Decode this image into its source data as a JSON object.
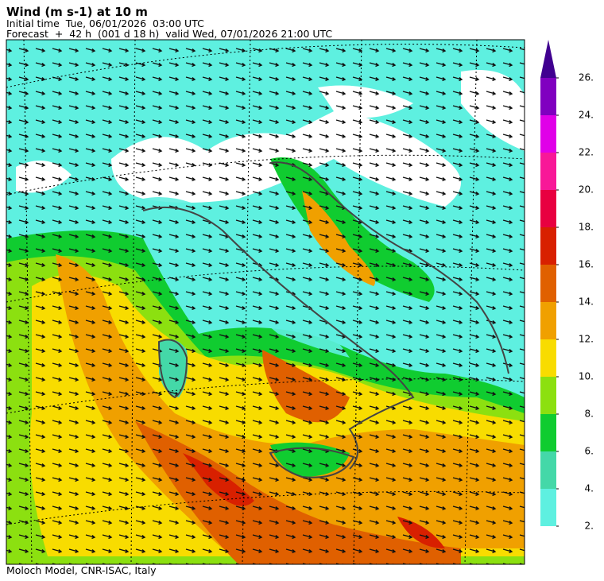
{
  "header": {
    "title": "Wind (m s-1) at 10 m",
    "initial": "Initial time  Tue, 06/01/2026  03:00 UTC",
    "forecast": "Forecast  +  42 h  (001 d 18 h)  valid Wed, 07/01/2026 21:00 UTC"
  },
  "colorbar": {
    "ticks": [
      {
        "value": 2,
        "label": "2."
      },
      {
        "value": 4,
        "label": "4."
      },
      {
        "value": 6,
        "label": "6."
      },
      {
        "value": 8,
        "label": "8."
      },
      {
        "value": 10,
        "label": "10."
      },
      {
        "value": 12,
        "label": "12."
      },
      {
        "value": 14,
        "label": "14."
      },
      {
        "value": 16,
        "label": "16."
      },
      {
        "value": 18,
        "label": "18."
      },
      {
        "value": 20,
        "label": "20."
      },
      {
        "value": 22,
        "label": "22."
      },
      {
        "value": 24,
        "label": "24."
      },
      {
        "value": 26,
        "label": "26."
      }
    ],
    "colors": [
      "#5ef0e0",
      "#44d8a8",
      "#10cc30",
      "#8ce010",
      "#f8dc00",
      "#f0a000",
      "#e06000",
      "#d82000",
      "#e80040",
      "#f81898",
      "#e000e8",
      "#8000c0"
    ],
    "extend_color": "#400090"
  },
  "footer": "Moloch Model, CNR-ISAC, Italy"
}
